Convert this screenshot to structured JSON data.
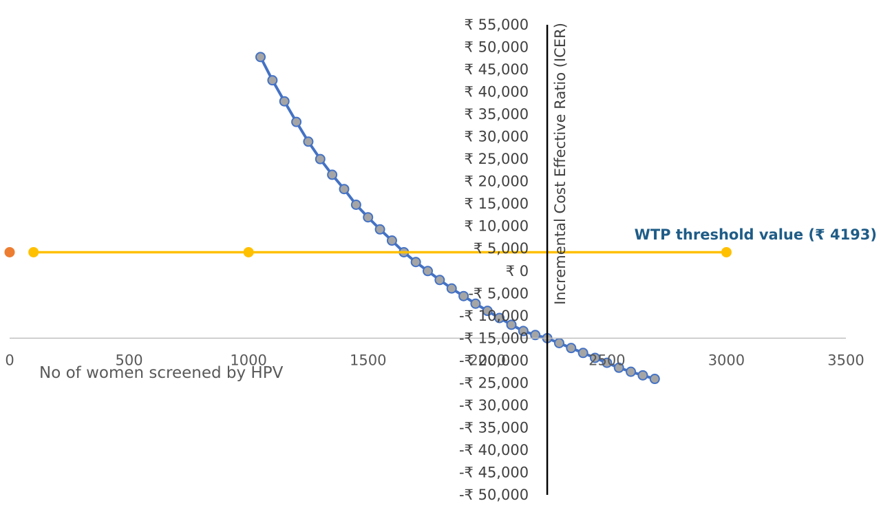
{
  "chart_data": {
    "type": "scatter",
    "xlabel": "No of women screened by HPV",
    "ylabel": "Incremental Cost Effective Ratio (ICER)",
    "annotation": "WTP threshold value (₹ 4193)",
    "xlim": [
      0,
      3500
    ],
    "ylim": [
      -50000,
      55000
    ],
    "x_ticks": [
      0,
      500,
      1000,
      1500,
      2000,
      2500,
      3000,
      3500
    ],
    "x_tick_labels": [
      "0",
      "500",
      "1000",
      "1500",
      "2000",
      "2500",
      "3000",
      "3500"
    ],
    "y_ticks": [
      55000,
      50000,
      45000,
      40000,
      35000,
      30000,
      25000,
      20000,
      15000,
      10000,
      5000,
      0,
      -5000,
      -10000,
      -15000,
      -20000,
      -25000,
      -30000,
      -35000,
      -40000,
      -45000,
      -50000
    ],
    "y_tick_labels": [
      "₹ 55,000",
      "₹ 50,000",
      "₹ 45,000",
      "₹ 40,000",
      "₹ 35,000",
      "₹ 30,000",
      "₹ 25,000",
      "₹ 20,000",
      "₹ 15,000",
      "₹ 10,000",
      "₹ 5,000",
      "₹ 0",
      "-₹ 5,000",
      "-₹ 10,000",
      "-₹ 15,000",
      "-₹ 20,000",
      "-₹ 25,000",
      "-₹ 30,000",
      "-₹ 35,000",
      "-₹ 40,000",
      "-₹ 45,000",
      "-₹ 50,000"
    ],
    "y_axis_crosses_x_at": 2250,
    "x_axis_crosses_y_at": -15000,
    "grid": false,
    "series": [
      {
        "style": "line-markers",
        "color": "#4472C4",
        "marker_color": "#A5A5A5",
        "x": [
          1050,
          1100,
          1150,
          1200,
          1250,
          1300,
          1350,
          1400,
          1450,
          1500,
          1550,
          1600,
          1650,
          1700,
          1750,
          1800,
          1850,
          1900,
          1950,
          2000,
          2050,
          2100,
          2150,
          2200,
          2250,
          2300,
          2350,
          2400,
          2450,
          2500,
          2550,
          2600,
          2650,
          2700
        ],
        "y": [
          47800,
          42600,
          37900,
          33300,
          28900,
          25000,
          21500,
          18300,
          14800,
          12000,
          9300,
          6800,
          4200,
          2000,
          0,
          -2000,
          -3900,
          -5600,
          -7300,
          -8900,
          -10500,
          -12000,
          -13400,
          -14300,
          -15000,
          -16100,
          -17200,
          -18300,
          -19400,
          -20500,
          -21600,
          -22500,
          -23300,
          -24100
        ]
      },
      {
        "style": "line-markers",
        "color": "#FFC000",
        "x": [
          100,
          1000,
          3000
        ],
        "y": [
          4193,
          4193,
          4193
        ]
      },
      {
        "style": "marker",
        "color": "#ED7D31",
        "x": [
          0
        ],
        "y": [
          4193
        ]
      }
    ]
  }
}
